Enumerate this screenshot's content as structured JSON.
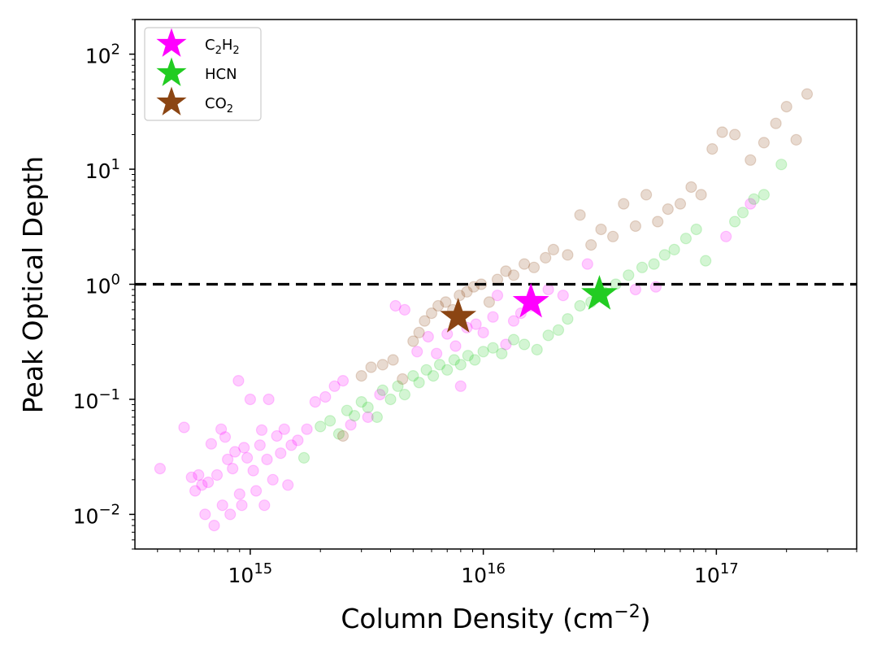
{
  "chart_data": {
    "type": "scatter",
    "xscale": "log",
    "yscale": "log",
    "xlim": [
      320000000000000.0,
      4e+17
    ],
    "ylim": [
      0.005,
      200
    ],
    "xlabel": "Column Density (cm",
    "xlabel_sup": "−2",
    "xlabel_end": ")",
    "ylabel": "Peak Optical Depth",
    "x_ticks": [
      {
        "value": 1000000000000000.0,
        "base": "10",
        "exp": "15"
      },
      {
        "value": 1e+16,
        "base": "10",
        "exp": "16"
      },
      {
        "value": 1e+17,
        "base": "10",
        "exp": "17"
      }
    ],
    "y_ticks": [
      {
        "value": 0.01,
        "base": "10",
        "exp": "−2"
      },
      {
        "value": 0.1,
        "base": "10",
        "exp": "−1"
      },
      {
        "value": 1,
        "base": "10",
        "exp": "0"
      },
      {
        "value": 10,
        "base": "10",
        "exp": "1"
      },
      {
        "value": 100,
        "base": "10",
        "exp": "2"
      }
    ],
    "threshold_line": {
      "y": 1,
      "style": "dashed",
      "color": "#000000"
    },
    "legend_position": "top-left",
    "legend": [
      {
        "name": "C2H2",
        "main": "C",
        "sub1": "2",
        "mid": "H",
        "sub2": "2",
        "color": "#ff00ff"
      },
      {
        "name": "HCN",
        "main": "HCN",
        "sub1": "",
        "mid": "",
        "sub2": "",
        "color": "#22cc22"
      },
      {
        "name": "CO2",
        "main": "CO",
        "sub1": "2",
        "mid": "",
        "sub2": "",
        "color": "#8b4513"
      }
    ],
    "series": [
      {
        "name": "C2H2",
        "color": "#ff00ff",
        "alpha": 0.2,
        "points": [
          [
            410000000000000.0,
            0.025
          ],
          [
            520000000000000.0,
            0.057
          ],
          [
            560000000000000.0,
            0.021
          ],
          [
            580000000000000.0,
            0.016
          ],
          [
            600000000000000.0,
            0.022
          ],
          [
            620000000000000.0,
            0.018
          ],
          [
            640000000000000.0,
            0.01
          ],
          [
            660000000000000.0,
            0.019
          ],
          [
            680000000000000.0,
            0.041
          ],
          [
            700000000000000.0,
            0.008
          ],
          [
            720000000000000.0,
            0.022
          ],
          [
            750000000000000.0,
            0.055
          ],
          [
            760000000000000.0,
            0.012
          ],
          [
            780000000000000.0,
            0.047
          ],
          [
            800000000000000.0,
            0.03
          ],
          [
            820000000000000.0,
            0.01
          ],
          [
            840000000000000.0,
            0.025
          ],
          [
            860000000000000.0,
            0.035
          ],
          [
            890000000000000.0,
            0.145
          ],
          [
            900000000000000.0,
            0.015
          ],
          [
            920000000000000.0,
            0.012
          ],
          [
            940000000000000.0,
            0.038
          ],
          [
            970000000000000.0,
            0.031
          ],
          [
            1000000000000000.0,
            0.1
          ],
          [
            1030000000000000.0,
            0.024
          ],
          [
            1060000000000000.0,
            0.016
          ],
          [
            1100000000000000.0,
            0.04
          ],
          [
            1120000000000000.0,
            0.054
          ],
          [
            1150000000000000.0,
            0.012
          ],
          [
            1180000000000000.0,
            0.03
          ],
          [
            1200000000000000.0,
            0.1
          ],
          [
            1250000000000000.0,
            0.02
          ],
          [
            1300000000000000.0,
            0.048
          ],
          [
            1350000000000000.0,
            0.034
          ],
          [
            1400000000000000.0,
            0.055
          ],
          [
            1450000000000000.0,
            0.018
          ],
          [
            1500000000000000.0,
            0.04
          ],
          [
            1600000000000000.0,
            0.044
          ],
          [
            1750000000000000.0,
            0.055
          ],
          [
            1900000000000000.0,
            0.095
          ],
          [
            2100000000000000.0,
            0.105
          ],
          [
            2300000000000000.0,
            0.13
          ],
          [
            2500000000000000.0,
            0.145
          ],
          [
            2700000000000000.0,
            0.06
          ],
          [
            3200000000000000.0,
            0.07
          ],
          [
            3600000000000000.0,
            0.11
          ],
          [
            4200000000000000.0,
            0.65
          ],
          [
            4600000000000000.0,
            0.6
          ],
          [
            5200000000000000.0,
            0.26
          ],
          [
            5800000000000000.0,
            0.35
          ],
          [
            6300000000000000.0,
            0.25
          ],
          [
            7000000000000000.0,
            0.37
          ],
          [
            7600000000000000.0,
            0.29
          ],
          [
            8000000000000000.0,
            0.13
          ],
          [
            8500000000000000.0,
            0.42
          ],
          [
            9300000000000000.0,
            0.45
          ],
          [
            1e+16,
            0.38
          ],
          [
            1.1e+16,
            0.52
          ],
          [
            1.15e+16,
            0.8
          ],
          [
            1.25e+16,
            0.3
          ],
          [
            1.35e+16,
            0.48
          ],
          [
            1.45e+16,
            0.56
          ],
          [
            1.6e+16,
            0.65
          ],
          [
            1.9e+16,
            0.9
          ],
          [
            2.2e+16,
            0.8
          ],
          [
            2.8e+16,
            1.5
          ],
          [
            4.5e+16,
            0.9
          ],
          [
            5.5e+16,
            0.95
          ],
          [
            1.1e+17,
            2.6
          ],
          [
            1.4e+17,
            5.0
          ]
        ]
      },
      {
        "name": "HCN",
        "color": "#22cc22",
        "alpha": 0.2,
        "points": [
          [
            1700000000000000.0,
            0.031
          ],
          [
            2000000000000000.0,
            0.058
          ],
          [
            2200000000000000.0,
            0.065
          ],
          [
            2400000000000000.0,
            0.05
          ],
          [
            2600000000000000.0,
            0.08
          ],
          [
            2800000000000000.0,
            0.072
          ],
          [
            3000000000000000.0,
            0.095
          ],
          [
            3200000000000000.0,
            0.085
          ],
          [
            3500000000000000.0,
            0.07
          ],
          [
            3700000000000000.0,
            0.12
          ],
          [
            4000000000000000.0,
            0.1
          ],
          [
            4300000000000000.0,
            0.13
          ],
          [
            4600000000000000.0,
            0.11
          ],
          [
            5000000000000000.0,
            0.16
          ],
          [
            5300000000000000.0,
            0.14
          ],
          [
            5700000000000000.0,
            0.18
          ],
          [
            6100000000000000.0,
            0.16
          ],
          [
            6500000000000000.0,
            0.2
          ],
          [
            7000000000000000.0,
            0.18
          ],
          [
            7500000000000000.0,
            0.22
          ],
          [
            8000000000000000.0,
            0.2
          ],
          [
            8600000000000000.0,
            0.24
          ],
          [
            9200000000000000.0,
            0.22
          ],
          [
            1e+16,
            0.26
          ],
          [
            1.1e+16,
            0.28
          ],
          [
            1.2e+16,
            0.25
          ],
          [
            1.35e+16,
            0.33
          ],
          [
            1.5e+16,
            0.3
          ],
          [
            1.7e+16,
            0.27
          ],
          [
            1.9e+16,
            0.36
          ],
          [
            2.1e+16,
            0.4
          ],
          [
            2.3e+16,
            0.5
          ],
          [
            2.6e+16,
            0.65
          ],
          [
            2.9e+16,
            0.7
          ],
          [
            3.3e+16,
            0.85
          ],
          [
            3.7e+16,
            1.0
          ],
          [
            4.2e+16,
            1.2
          ],
          [
            4.8e+16,
            1.4
          ],
          [
            5.4e+16,
            1.5
          ],
          [
            6e+16,
            1.8
          ],
          [
            6.6e+16,
            2.0
          ],
          [
            7.4e+16,
            2.5
          ],
          [
            8.2e+16,
            3.0
          ],
          [
            9e+16,
            1.6
          ],
          [
            1.2e+17,
            3.5
          ],
          [
            1.3e+17,
            4.2
          ],
          [
            1.45e+17,
            5.5
          ],
          [
            1.6e+17,
            6.0
          ],
          [
            1.9e+17,
            11.0
          ]
        ]
      },
      {
        "name": "CO2",
        "color": "#8b4513",
        "alpha": 0.2,
        "points": [
          [
            2500000000000000.0,
            0.048
          ],
          [
            3000000000000000.0,
            0.16
          ],
          [
            3300000000000000.0,
            0.19
          ],
          [
            3700000000000000.0,
            0.2
          ],
          [
            4100000000000000.0,
            0.22
          ],
          [
            4500000000000000.0,
            0.15
          ],
          [
            5000000000000000.0,
            0.32
          ],
          [
            5300000000000000.0,
            0.38
          ],
          [
            5600000000000000.0,
            0.48
          ],
          [
            6000000000000000.0,
            0.56
          ],
          [
            6400000000000000.0,
            0.65
          ],
          [
            6900000000000000.0,
            0.7
          ],
          [
            7400000000000000.0,
            0.6
          ],
          [
            7900000000000000.0,
            0.8
          ],
          [
            8500000000000000.0,
            0.86
          ],
          [
            9100000000000000.0,
            0.95
          ],
          [
            9800000000000000.0,
            1.0
          ],
          [
            1.06e+16,
            0.7
          ],
          [
            1.15e+16,
            1.1
          ],
          [
            1.25e+16,
            1.3
          ],
          [
            1.35e+16,
            1.2
          ],
          [
            1.5e+16,
            1.5
          ],
          [
            1.65e+16,
            1.4
          ],
          [
            1.85e+16,
            1.7
          ],
          [
            2e+16,
            2.0
          ],
          [
            2.3e+16,
            1.8
          ],
          [
            2.6e+16,
            4.0
          ],
          [
            2.9e+16,
            2.2
          ],
          [
            3.2e+16,
            3.0
          ],
          [
            3.6e+16,
            2.6
          ],
          [
            4e+16,
            5.0
          ],
          [
            4.5e+16,
            3.2
          ],
          [
            5e+16,
            6.0
          ],
          [
            5.6e+16,
            3.5
          ],
          [
            6.2e+16,
            4.5
          ],
          [
            7e+16,
            5.0
          ],
          [
            7.8e+16,
            7.0
          ],
          [
            8.6e+16,
            6.0
          ],
          [
            9.6e+16,
            15.0
          ],
          [
            1.06e+17,
            21.0
          ],
          [
            1.2e+17,
            20.0
          ],
          [
            1.4e+17,
            12.0
          ],
          [
            1.6e+17,
            17.0
          ],
          [
            1.8e+17,
            25.0
          ],
          [
            2e+17,
            35.0
          ],
          [
            2.2e+17,
            18.0
          ],
          [
            2.45e+17,
            45.0
          ]
        ]
      }
    ],
    "highlighted_points": [
      {
        "name": "C2H2",
        "x": 1.6e+16,
        "y": 0.7,
        "color": "#ff00ff"
      },
      {
        "name": "HCN",
        "x": 3.15e+16,
        "y": 0.82,
        "color": "#22cc22"
      },
      {
        "name": "CO2",
        "x": 7800000000000000.0,
        "y": 0.52,
        "color": "#8b4513"
      }
    ]
  }
}
